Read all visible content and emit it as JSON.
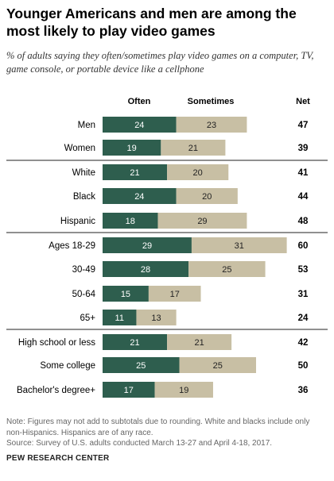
{
  "title": "Younger Americans and men are among the most likely to play video games",
  "subtitle": "% of adults saying they often/sometimes play video games on a computer, TV, game console, or portable device like a cellphone",
  "note": "Note: Figures may not add to subtotals due to rounding. White and blacks include only non-Hispanics. Hispanics are of any race.",
  "source": "Source: Survey of U.S. adults conducted March 13-27 and April 4-18, 2017.",
  "brand": "PEW RESEARCH CENTER",
  "colors": {
    "often": "#2e5e4e",
    "sometimes": "#c8bfa4",
    "divider": "#222222"
  },
  "chart_data": {
    "type": "bar",
    "orientation": "horizontal",
    "stacked": true,
    "column_headers": {
      "often": "Often",
      "sometimes": "Sometimes",
      "net": "Net"
    },
    "categories": [
      "Men",
      "Women",
      "White",
      "Black",
      "Hispanic",
      "Ages 18-29",
      "30-49",
      "50-64",
      "65+",
      "High school or less",
      "Some college",
      "Bachelor's degree+"
    ],
    "groups": [
      {
        "categories": [
          "Men",
          "Women"
        ]
      },
      {
        "categories": [
          "White",
          "Black",
          "Hispanic"
        ]
      },
      {
        "categories": [
          "Ages 18-29",
          "30-49",
          "50-64",
          "65+"
        ]
      },
      {
        "categories": [
          "High school or less",
          "Some college",
          "Bachelor's degree+"
        ]
      }
    ],
    "series": [
      {
        "name": "Often",
        "values": [
          24,
          19,
          21,
          24,
          18,
          29,
          28,
          15,
          11,
          21,
          25,
          17
        ]
      },
      {
        "name": "Sometimes",
        "values": [
          23,
          21,
          20,
          20,
          29,
          31,
          25,
          17,
          13,
          21,
          25,
          19
        ]
      }
    ],
    "net": [
      47,
      39,
      41,
      44,
      48,
      60,
      53,
      31,
      24,
      42,
      50,
      36
    ],
    "grid": false,
    "legend": "top column headers"
  }
}
